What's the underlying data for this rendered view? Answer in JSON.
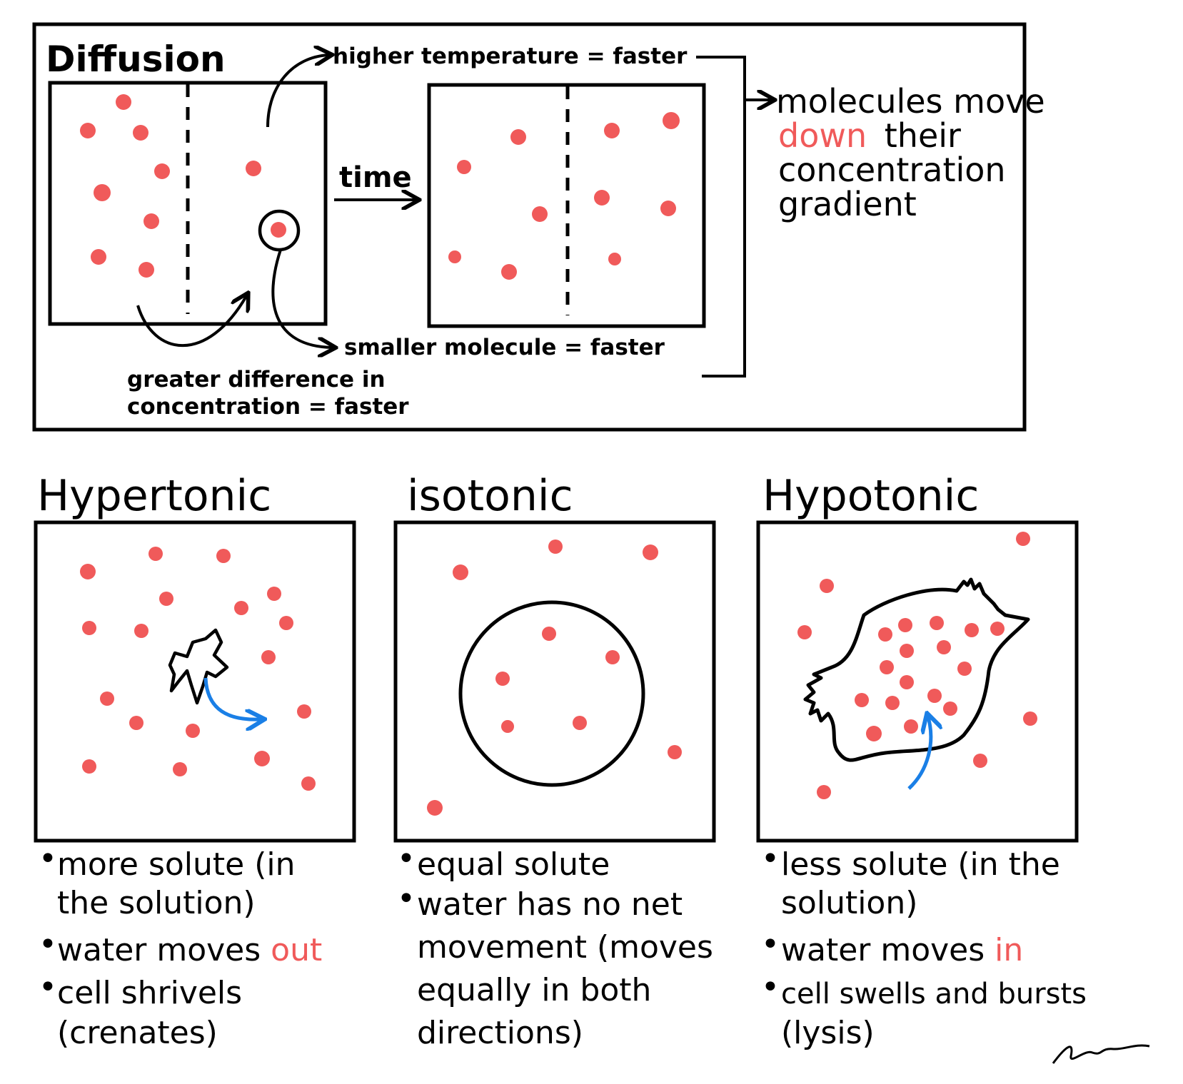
{
  "diffusion": {
    "title": "Diffusion",
    "factor_temperature": "higher temperature = faster",
    "step_label": "time",
    "factor_molecule_size": "smaller molecule = faster",
    "factor_concentration_line1": "greater difference in",
    "factor_concentration_line2": "concentration = faster",
    "result_line1": "molecules move",
    "result_word_highlight": "down",
    "result_line2_rest": "their",
    "result_line3": "concentration",
    "result_line4": "gradient"
  },
  "solutions": [
    {
      "title": "Hypertonic",
      "bullets": [
        {
          "lines": [
            "more solute (in",
            "the solution)"
          ]
        },
        {
          "lines": [
            "water moves "
          ],
          "highlight": "out"
        },
        {
          "lines": [
            "cell shrivels",
            "(crenates)"
          ]
        }
      ]
    },
    {
      "title": "isotonic",
      "bullets": [
        {
          "lines": [
            "equal solute"
          ]
        },
        {
          "lines": [
            "water has no net",
            "movement (moves",
            "equally in both",
            "directions)"
          ]
        }
      ]
    },
    {
      "title": "Hypotonic",
      "bullets": [
        {
          "lines": [
            "less solute (in the",
            "solution)"
          ]
        },
        {
          "lines": [
            "water moves "
          ],
          "highlight": "in"
        },
        {
          "lines": [
            "cell swells and bursts",
            "(lysis)"
          ]
        }
      ]
    }
  ],
  "colors": {
    "ink": "#000000",
    "particle": "#f05a5a",
    "highlight": "#f05a5a",
    "water_arrow": "#1a7fe6"
  }
}
